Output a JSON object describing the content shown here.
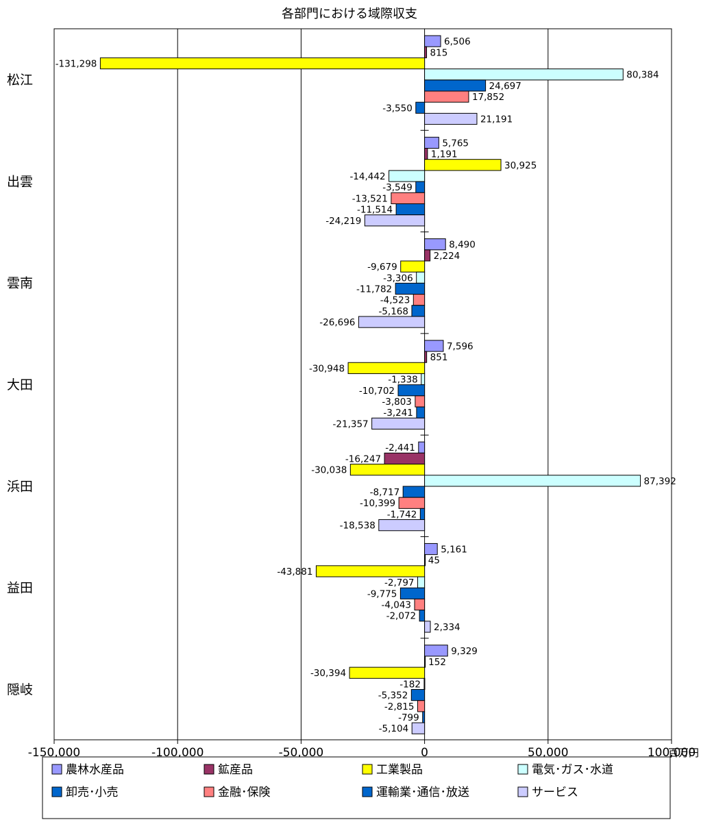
{
  "chart_data": {
    "type": "bar",
    "orientation": "horizontal",
    "title": "各部門における域際収支",
    "unit": "百万円",
    "xlim": [
      -150000,
      100000
    ],
    "x_ticks": [
      -150000,
      -100000,
      -50000,
      0,
      50000,
      100000
    ],
    "x_tick_labels": [
      "-150,000",
      "-100,000",
      "-50,000",
      "0",
      "50,000",
      "100,000"
    ],
    "grid": true,
    "legend_position": "bottom",
    "categories": [
      "松江",
      "出雲",
      "雲南",
      "大田",
      "浜田",
      "益田",
      "隠岐"
    ],
    "series": [
      {
        "name": "農林水産品",
        "color": "#9999FF",
        "values": [
          6506,
          5765,
          8490,
          7596,
          -2441,
          5161,
          9329
        ],
        "labels": [
          "6,506",
          "5,765",
          "8,490",
          "7,596",
          "-2,441",
          "5,161",
          "9,329"
        ]
      },
      {
        "name": "鉱産品",
        "color": "#993366",
        "values": [
          815,
          1191,
          2224,
          851,
          -16247,
          45,
          152
        ],
        "labels": [
          "815",
          "1,191",
          "2,224",
          "851",
          "-16,247",
          "45",
          "152"
        ]
      },
      {
        "name": "工業製品",
        "color": "#FFFF00",
        "values": [
          -131298,
          30925,
          -9679,
          -30948,
          -30038,
          -43881,
          -30394
        ],
        "labels": [
          "-131,298",
          "30,925",
          "-9,679",
          "-30,948",
          "-30,038",
          "-43,881",
          "-30,394"
        ]
      },
      {
        "name": "電気･ガス･水道",
        "color": "#CCFFFF",
        "values": [
          80384,
          -14442,
          -3306,
          -1338,
          87392,
          -2797,
          -182
        ],
        "labels": [
          "80,384",
          "-14,442",
          "-3,306",
          "-1,338",
          "87,392",
          "-2,797",
          "-182"
        ]
      },
      {
        "name": "卸売･小売",
        "color": "#0066CC",
        "values": [
          24697,
          -3549,
          -11782,
          -10702,
          -8717,
          -9775,
          -5352
        ],
        "labels": [
          "24,697",
          "-3,549",
          "-11,782",
          "-10,702",
          "-8,717",
          "-9,775",
          "-5,352"
        ]
      },
      {
        "name": "金融･保険",
        "color": "#FF8080",
        "values": [
          17852,
          -13521,
          -4523,
          -3803,
          -10399,
          -4043,
          -2815
        ],
        "labels": [
          "17,852",
          "-13,521",
          "-4,523",
          "-3,803",
          "-10,399",
          "-4,043",
          "-2,815"
        ]
      },
      {
        "name": "運輸業･通信･放送",
        "color": "#0066CC",
        "values": [
          -3550,
          -11514,
          -5168,
          -3241,
          -1742,
          -2072,
          -799
        ],
        "labels": [
          "-3,550",
          "-11,514",
          "-5,168",
          "-3,241",
          "-1,742",
          "-2,072",
          "-799"
        ]
      },
      {
        "name": "サービス",
        "color": "#CCCCFF",
        "values": [
          21191,
          -24219,
          -26696,
          -21357,
          -18538,
          2334,
          -5104
        ],
        "labels": [
          "21,191",
          "-24,219",
          "-26,696",
          "-21,357",
          "-18,538",
          "2,334",
          "-5,104"
        ]
      }
    ]
  }
}
